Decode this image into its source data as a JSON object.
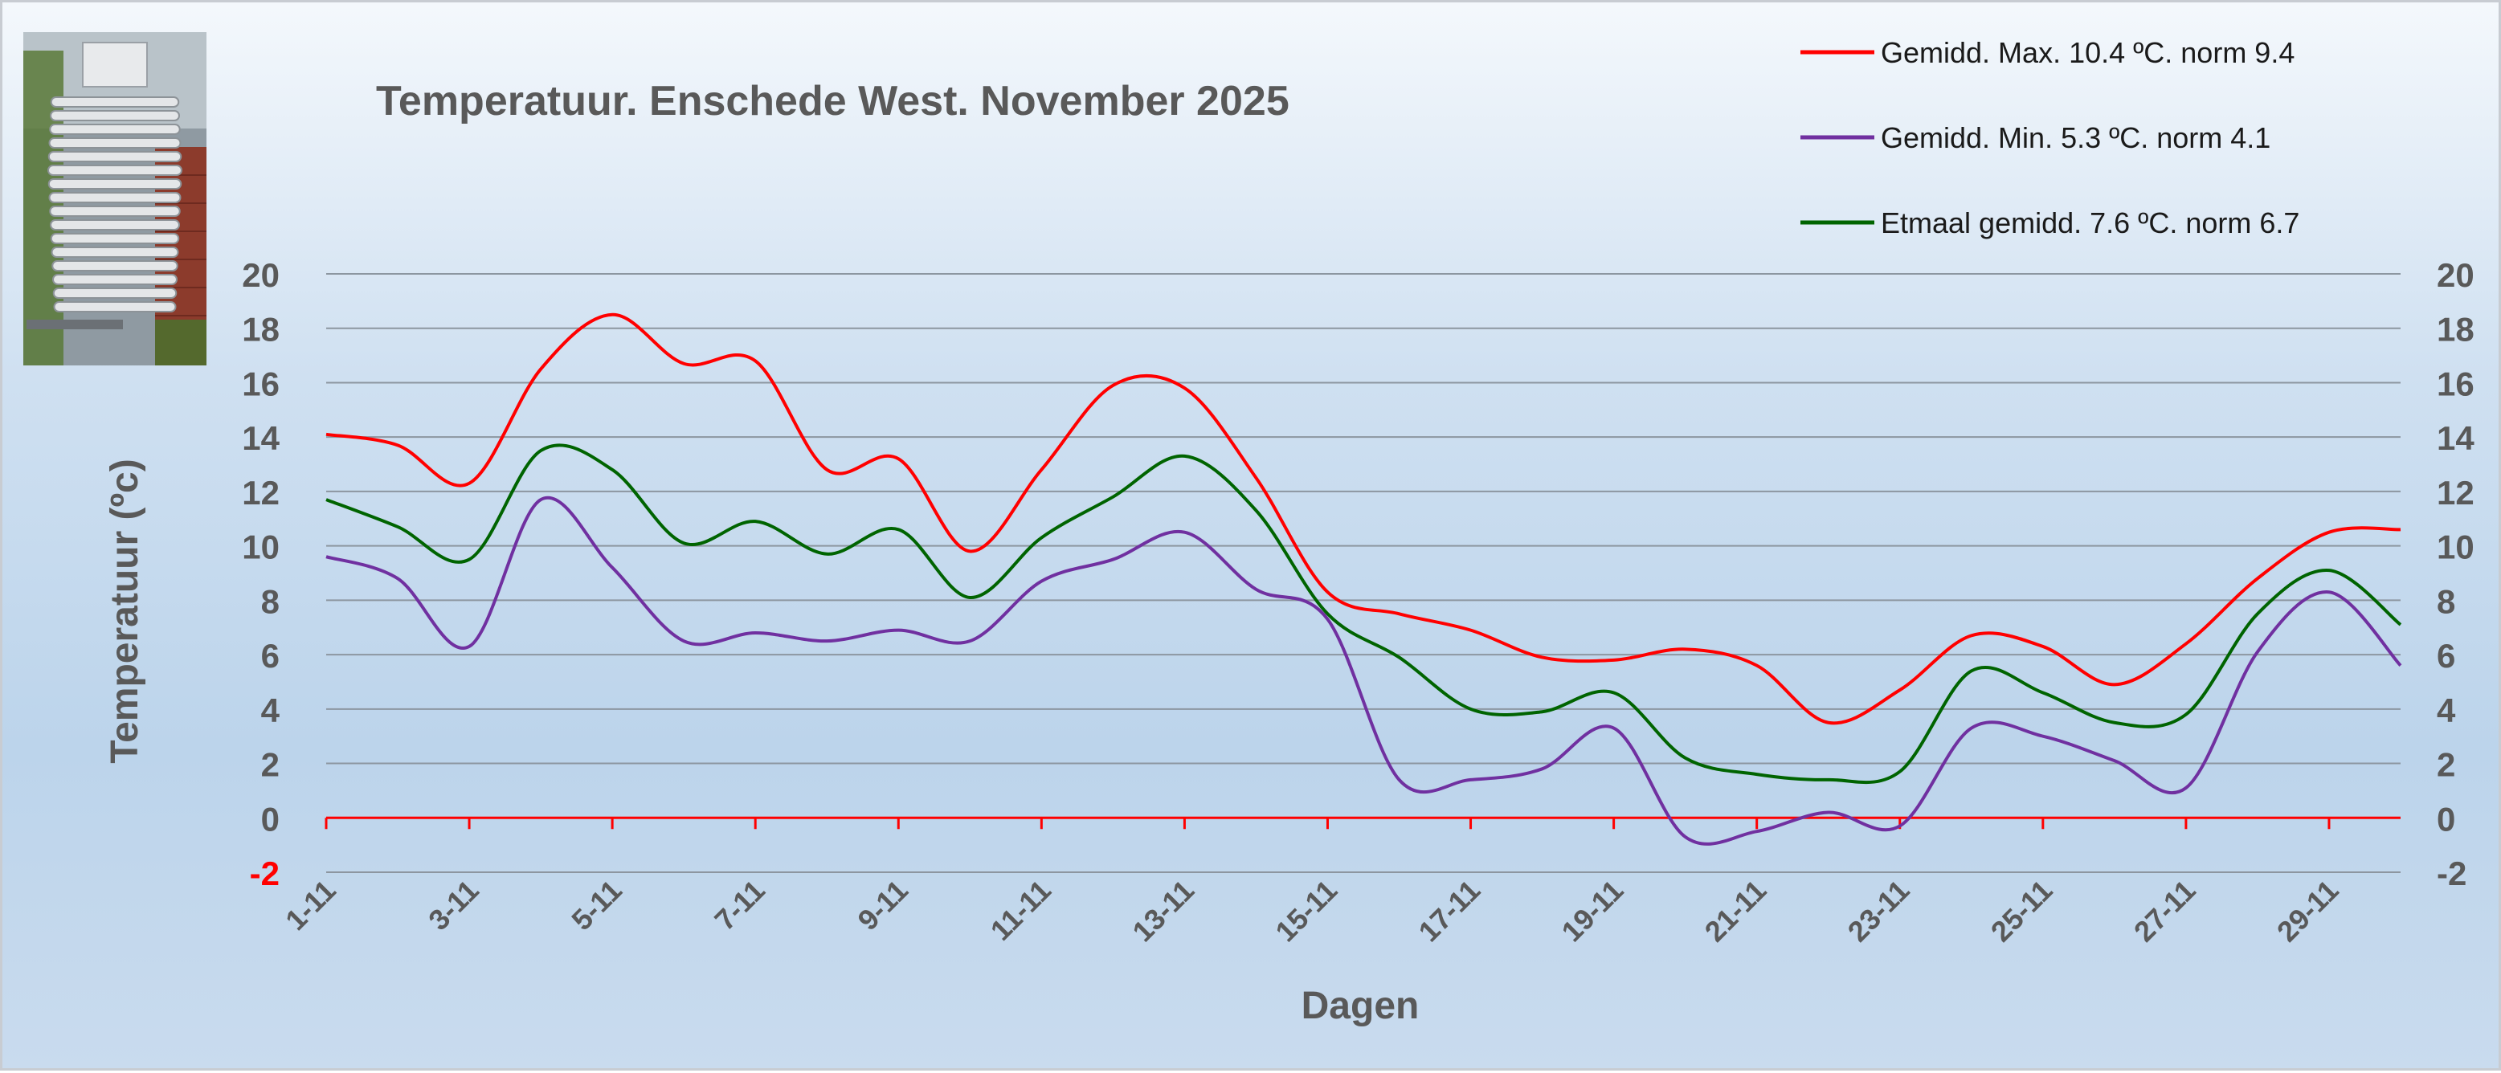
{
  "chart_data": {
    "type": "line",
    "title": "Temperatuur. Enschede West. November 2025",
    "xlabel": "Dagen",
    "ylabel": "Temperatuur (ºc)",
    "ylim": [
      -2,
      20
    ],
    "yticks": [
      20,
      18,
      16,
      14,
      12,
      10,
      8,
      6,
      4,
      2,
      0,
      -2
    ],
    "grid": true,
    "legend_position": "top-right",
    "xtick_labels": [
      "1-11",
      "3-11",
      "5-11",
      "7-11",
      "9-11",
      "11-11",
      "13-11",
      "15-11",
      "17-11",
      "19-11",
      "21-11",
      "23-11",
      "25-11",
      "27-11",
      "29-11"
    ],
    "x": [
      1,
      2,
      3,
      4,
      5,
      6,
      7,
      8,
      9,
      10,
      11,
      12,
      13,
      14,
      15,
      16,
      17,
      18,
      19,
      20,
      21,
      22,
      23,
      24,
      25,
      26,
      27,
      28,
      29,
      30
    ],
    "series": [
      {
        "name": "Gemidd. Max. 10.4  ºC. norm 9.4",
        "color": "#ff0000",
        "values": [
          14.1,
          13.7,
          12.3,
          16.5,
          18.5,
          16.7,
          16.8,
          12.8,
          13.2,
          9.8,
          12.8,
          15.9,
          15.8,
          12.5,
          8.3,
          7.5,
          6.9,
          5.9,
          5.8,
          6.2,
          5.6,
          3.5,
          4.7,
          6.7,
          6.3,
          4.9,
          6.4,
          8.8,
          10.5,
          10.6
        ]
      },
      {
        "name": "Gemidd. Min. 5.3  ºC. norm 4.1",
        "color": "#7030a0",
        "values": [
          9.6,
          8.8,
          6.3,
          11.7,
          9.2,
          6.5,
          6.8,
          6.5,
          6.9,
          6.5,
          8.7,
          9.5,
          10.5,
          8.4,
          7.3,
          1.4,
          1.4,
          1.8,
          3.3,
          -0.7,
          -0.5,
          0.2,
          -0.3,
          3.3,
          3.0,
          2.1,
          1.1,
          6.1,
          8.3,
          5.6
        ]
      },
      {
        "name": "Etmaal gemidd. 7.6  ºC. norm 6.7",
        "color": "#006400",
        "values": [
          11.7,
          10.7,
          9.5,
          13.5,
          12.8,
          10.1,
          10.9,
          9.7,
          10.6,
          8.1,
          10.3,
          11.8,
          13.3,
          11.3,
          7.5,
          5.9,
          4.0,
          3.9,
          4.6,
          2.2,
          1.6,
          1.4,
          1.7,
          5.4,
          4.6,
          3.5,
          3.8,
          7.5,
          9.1,
          7.1
        ]
      }
    ]
  }
}
